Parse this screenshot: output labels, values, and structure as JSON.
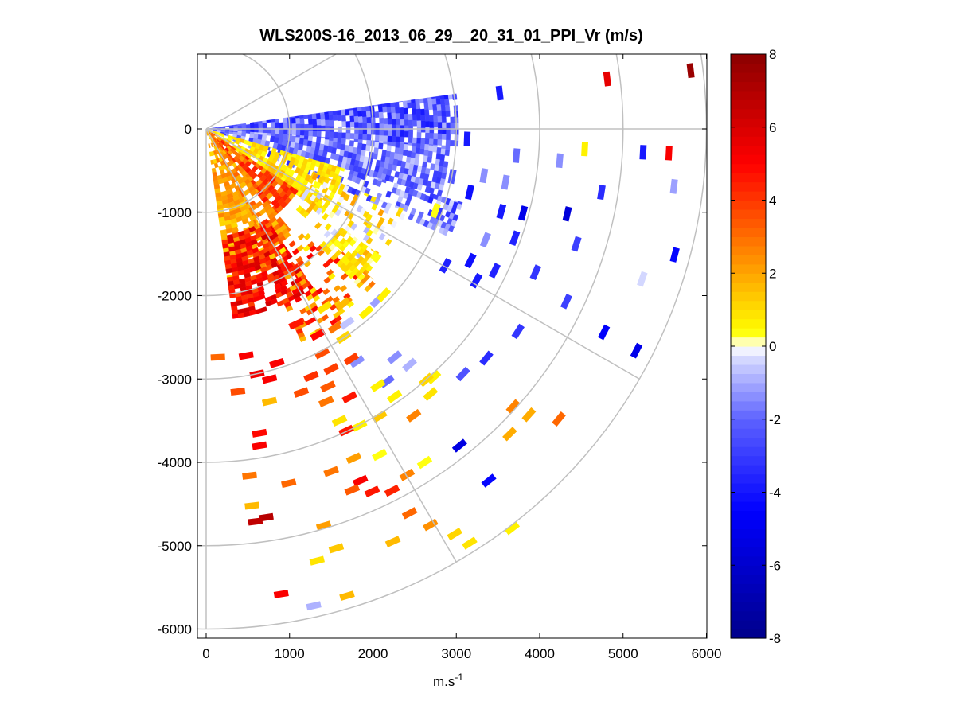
{
  "chart_data": {
    "type": "heatmap",
    "subtype": "ppi-polar-scan",
    "title": "WLS200S-16_2013_06_29__20_31_01_PPI_Vr (m/s)",
    "xlabel": "m.s",
    "xlabel_superscript": "-1",
    "ylabel": "",
    "xlim": [
      -100,
      6000
    ],
    "ylim": [
      -6100,
      900
    ],
    "xticks": [
      0,
      1000,
      2000,
      3000,
      4000,
      5000,
      6000
    ],
    "xtick_labels": [
      "0",
      "1000",
      "2000",
      "3000",
      "4000",
      "5000",
      "6000"
    ],
    "yticks": [
      0,
      -1000,
      -2000,
      -3000,
      -4000,
      -5000,
      -6000
    ],
    "ytick_labels": [
      "0",
      "-1000",
      "-2000",
      "-3000",
      "-4000",
      "-5000",
      "-6000"
    ],
    "polar_grid": {
      "range_rings_m": [
        1000,
        2000,
        3000,
        4000,
        5000,
        6000
      ],
      "spokes_deg": [
        30,
        0,
        -30,
        -60,
        -90
      ],
      "azimuth_min_deg": -90,
      "azimuth_max_deg": 10
    },
    "colorbar": {
      "min": -8,
      "max": 8,
      "ticks": [
        8,
        6,
        4,
        2,
        0,
        -2,
        -4,
        -6,
        -8
      ],
      "tick_labels": [
        "8",
        "6",
        "4",
        "2",
        "0",
        "-2",
        "-4",
        "-6",
        "-8"
      ],
      "stops": [
        {
          "v": -8,
          "color": "#00008b"
        },
        {
          "v": -4.5,
          "color": "#0000ff"
        },
        {
          "v": -2,
          "color": "#5d62ff"
        },
        {
          "v": -0.4,
          "color": "#d0d4ff"
        },
        {
          "v": 0,
          "color": "#ffffff"
        },
        {
          "v": 0.4,
          "color": "#ffff00"
        },
        {
          "v": 2,
          "color": "#ffa500"
        },
        {
          "v": 5,
          "color": "#ff0000"
        },
        {
          "v": 8,
          "color": "#8b0000"
        }
      ]
    },
    "points": [
      {
        "x": 5810,
        "y": 700,
        "v": 7.5
      },
      {
        "x": 4810,
        "y": 600,
        "v": 5.6
      },
      {
        "x": 3520,
        "y": 430,
        "v": -4.0
      },
      {
        "x": 4540,
        "y": -240,
        "v": 0.6
      },
      {
        "x": 5550,
        "y": -290,
        "v": 5.0
      },
      {
        "x": 5240,
        "y": -280,
        "v": -3.8
      },
      {
        "x": 3720,
        "y": -320,
        "v": -1.8
      },
      {
        "x": 4240,
        "y": -380,
        "v": -1.4
      },
      {
        "x": 3130,
        "y": -120,
        "v": -4.0
      },
      {
        "x": 2950,
        "y": -570,
        "v": -2.5
      },
      {
        "x": 3330,
        "y": -560,
        "v": -1.3
      },
      {
        "x": 3590,
        "y": -640,
        "v": -1.4
      },
      {
        "x": 4740,
        "y": -760,
        "v": -3.4
      },
      {
        "x": 5610,
        "y": -690,
        "v": -1.2
      },
      {
        "x": 3160,
        "y": -760,
        "v": -4.2
      },
      {
        "x": 3540,
        "y": -990,
        "v": -3.9
      },
      {
        "x": 3800,
        "y": -1010,
        "v": -5.2
      },
      {
        "x": 4330,
        "y": -1020,
        "v": -5.6
      },
      {
        "x": 2750,
        "y": -980,
        "v": 0.4
      },
      {
        "x": 3350,
        "y": -1330,
        "v": -1.5
      },
      {
        "x": 3700,
        "y": -1310,
        "v": -3.6
      },
      {
        "x": 4440,
        "y": -1380,
        "v": -2.9
      },
      {
        "x": 5620,
        "y": -1510,
        "v": -4.3
      },
      {
        "x": 3170,
        "y": -1580,
        "v": -4.2
      },
      {
        "x": 3460,
        "y": -1700,
        "v": -3.7
      },
      {
        "x": 3950,
        "y": -1720,
        "v": -3.1
      },
      {
        "x": 2870,
        "y": -1640,
        "v": -3.6
      },
      {
        "x": 3240,
        "y": -1820,
        "v": -4.0
      },
      {
        "x": 5230,
        "y": -1800,
        "v": -0.5
      },
      {
        "x": 4320,
        "y": -2070,
        "v": -2.9
      },
      {
        "x": 3740,
        "y": -2430,
        "v": -3.1
      },
      {
        "x": 4770,
        "y": -2440,
        "v": -4.7
      },
      {
        "x": 5160,
        "y": -2660,
        "v": -5.2
      },
      {
        "x": 3360,
        "y": -2750,
        "v": -3.4
      },
      {
        "x": 3080,
        "y": -2940,
        "v": -2.5
      },
      {
        "x": 2260,
        "y": -2740,
        "v": -1.3
      },
      {
        "x": 2440,
        "y": -2830,
        "v": -1.0
      },
      {
        "x": 1810,
        "y": -2790,
        "v": -1.4
      },
      {
        "x": 2170,
        "y": -3030,
        "v": -1.8
      },
      {
        "x": 2730,
        "y": -2980,
        "v": 0.5
      },
      {
        "x": 2640,
        "y": -3010,
        "v": 1.2
      },
      {
        "x": 2690,
        "y": -3180,
        "v": 0.9
      },
      {
        "x": 2490,
        "y": -3440,
        "v": 2.6
      },
      {
        "x": 3680,
        "y": -3330,
        "v": 2.5
      },
      {
        "x": 3870,
        "y": -3430,
        "v": 1.8
      },
      {
        "x": 4230,
        "y": -3480,
        "v": 3.2
      },
      {
        "x": 3640,
        "y": -3660,
        "v": 1.9
      },
      {
        "x": 3040,
        "y": -3800,
        "v": -5.3
      },
      {
        "x": 3390,
        "y": -4220,
        "v": -4.3
      },
      {
        "x": 2620,
        "y": -4000,
        "v": 0.4
      },
      {
        "x": 2410,
        "y": -4150,
        "v": 2.6
      },
      {
        "x": 2230,
        "y": -4340,
        "v": 4.3
      },
      {
        "x": 1990,
        "y": -4350,
        "v": 4.7
      },
      {
        "x": 2440,
        "y": -4610,
        "v": 3.2
      },
      {
        "x": 2690,
        "y": -4750,
        "v": 2.4
      },
      {
        "x": 2240,
        "y": -4950,
        "v": 1.7
      },
      {
        "x": 2980,
        "y": -4860,
        "v": 1.0
      },
      {
        "x": 3160,
        "y": -4970,
        "v": 0.8
      },
      {
        "x": 3670,
        "y": -4790,
        "v": 0.7
      },
      {
        "x": 2060,
        "y": -3080,
        "v": 0.5
      },
      {
        "x": 2260,
        "y": -3210,
        "v": 0.7
      },
      {
        "x": 2080,
        "y": -3450,
        "v": 1.3
      },
      {
        "x": 1840,
        "y": -3560,
        "v": 0.6
      },
      {
        "x": 1680,
        "y": -3620,
        "v": 4.5
      },
      {
        "x": 1600,
        "y": -3500,
        "v": 0.8
      },
      {
        "x": 2080,
        "y": -3910,
        "v": 0.3
      },
      {
        "x": 1770,
        "y": -3950,
        "v": 2.1
      },
      {
        "x": 1500,
        "y": -4110,
        "v": 2.9
      },
      {
        "x": 1850,
        "y": -4220,
        "v": 5.1
      },
      {
        "x": 1750,
        "y": -4330,
        "v": 3.4
      },
      {
        "x": 1410,
        "y": -4760,
        "v": 2.2
      },
      {
        "x": 1560,
        "y": -5030,
        "v": 1.3
      },
      {
        "x": 1330,
        "y": -5180,
        "v": 0.9
      },
      {
        "x": 1690,
        "y": -5600,
        "v": 1.6
      },
      {
        "x": 1290,
        "y": -5720,
        "v": -0.9
      },
      {
        "x": 900,
        "y": -5580,
        "v": 5.2
      },
      {
        "x": 990,
        "y": -4250,
        "v": 3.2
      },
      {
        "x": 520,
        "y": -4160,
        "v": 2.9
      },
      {
        "x": 550,
        "y": -4520,
        "v": 1.7
      },
      {
        "x": 720,
        "y": -4660,
        "v": 6.9
      },
      {
        "x": 590,
        "y": -4710,
        "v": 6.5
      },
      {
        "x": 640,
        "y": -3650,
        "v": 4.9
      },
      {
        "x": 640,
        "y": -3800,
        "v": 5.1
      },
      {
        "x": 1720,
        "y": -3220,
        "v": 4.7
      },
      {
        "x": 1440,
        "y": -3270,
        "v": 2.9
      },
      {
        "x": 1460,
        "y": -3090,
        "v": 3.3
      },
      {
        "x": 1140,
        "y": -3160,
        "v": 3.6
      },
      {
        "x": 1740,
        "y": -2760,
        "v": 3.8
      },
      {
        "x": 1500,
        "y": -2880,
        "v": 3.8
      },
      {
        "x": 1260,
        "y": -2970,
        "v": 4.1
      },
      {
        "x": 1390,
        "y": -2690,
        "v": 3.6
      },
      {
        "x": 760,
        "y": -3270,
        "v": 1.7
      },
      {
        "x": 380,
        "y": -3150,
        "v": 3.6
      },
      {
        "x": 140,
        "y": -2740,
        "v": 3.0
      },
      {
        "x": 1080,
        "y": -2340,
        "v": 4.6
      },
      {
        "x": 1340,
        "y": -2470,
        "v": 4.9
      },
      {
        "x": 850,
        "y": -2810,
        "v": 5.1
      },
      {
        "x": 760,
        "y": -3000,
        "v": 5.2
      },
      {
        "x": 480,
        "y": -2720,
        "v": 5.1
      },
      {
        "x": 610,
        "y": -2940,
        "v": 5.3
      },
      {
        "x": 1550,
        "y": -2380,
        "v": 2.8
      },
      {
        "x": 1650,
        "y": -2500,
        "v": 1.1
      },
      {
        "x": 1420,
        "y": -2140,
        "v": 0.9
      },
      {
        "x": 1690,
        "y": -2330,
        "v": -0.7
      },
      {
        "x": 1920,
        "y": -2200,
        "v": 0.6
      },
      {
        "x": 2050,
        "y": -2060,
        "v": -1.1
      },
      {
        "x": 1640,
        "y": -2100,
        "v": 1.7
      },
      {
        "x": 2130,
        "y": -1990,
        "v": 0.6
      }
    ],
    "regions": [
      {
        "range_min": 30,
        "range_max": 3000,
        "az_min": -4,
        "az_max": 8,
        "v_min": -4.0,
        "v_max": -0.8,
        "density": 0.9
      },
      {
        "range_min": 30,
        "range_max": 2900,
        "az_min": -16,
        "az_max": -4,
        "v_min": -3.2,
        "v_max": -0.4,
        "density": 0.85
      },
      {
        "range_min": 200,
        "range_max": 3200,
        "az_min": -24,
        "az_max": -16,
        "v_min": -3.6,
        "v_max": -0.3,
        "density": 0.55
      },
      {
        "range_min": 30,
        "range_max": 1700,
        "az_min": -36,
        "az_max": -16,
        "v_min": 0.3,
        "v_max": 1.6,
        "density": 0.8
      },
      {
        "range_min": 1400,
        "range_max": 2600,
        "az_min": -42,
        "az_max": -22,
        "v_min": -0.8,
        "v_max": 2.2,
        "density": 0.35
      },
      {
        "range_min": 30,
        "range_max": 1300,
        "az_min": -52,
        "az_max": -34,
        "v_min": 1.8,
        "v_max": 4.6,
        "density": 0.9
      },
      {
        "range_min": 30,
        "range_max": 1600,
        "az_min": -64,
        "az_max": -50,
        "v_min": 1.4,
        "v_max": 3.4,
        "density": 0.85
      },
      {
        "range_min": 30,
        "range_max": 1800,
        "az_min": -82,
        "az_max": -62,
        "v_min": 1.0,
        "v_max": 2.8,
        "density": 0.8
      },
      {
        "range_min": 1300,
        "range_max": 2300,
        "az_min": -82,
        "az_max": -56,
        "v_min": 3.6,
        "v_max": 6.2,
        "density": 0.8
      },
      {
        "range_min": 1700,
        "range_max": 2800,
        "az_min": -66,
        "az_max": -42,
        "v_min": 0.4,
        "v_max": 5.4,
        "density": 0.25
      },
      {
        "range_min": 2000,
        "range_max": 2600,
        "az_min": -46,
        "az_max": -36,
        "v_min": 0.2,
        "v_max": 1.4,
        "density": 0.7
      }
    ]
  }
}
